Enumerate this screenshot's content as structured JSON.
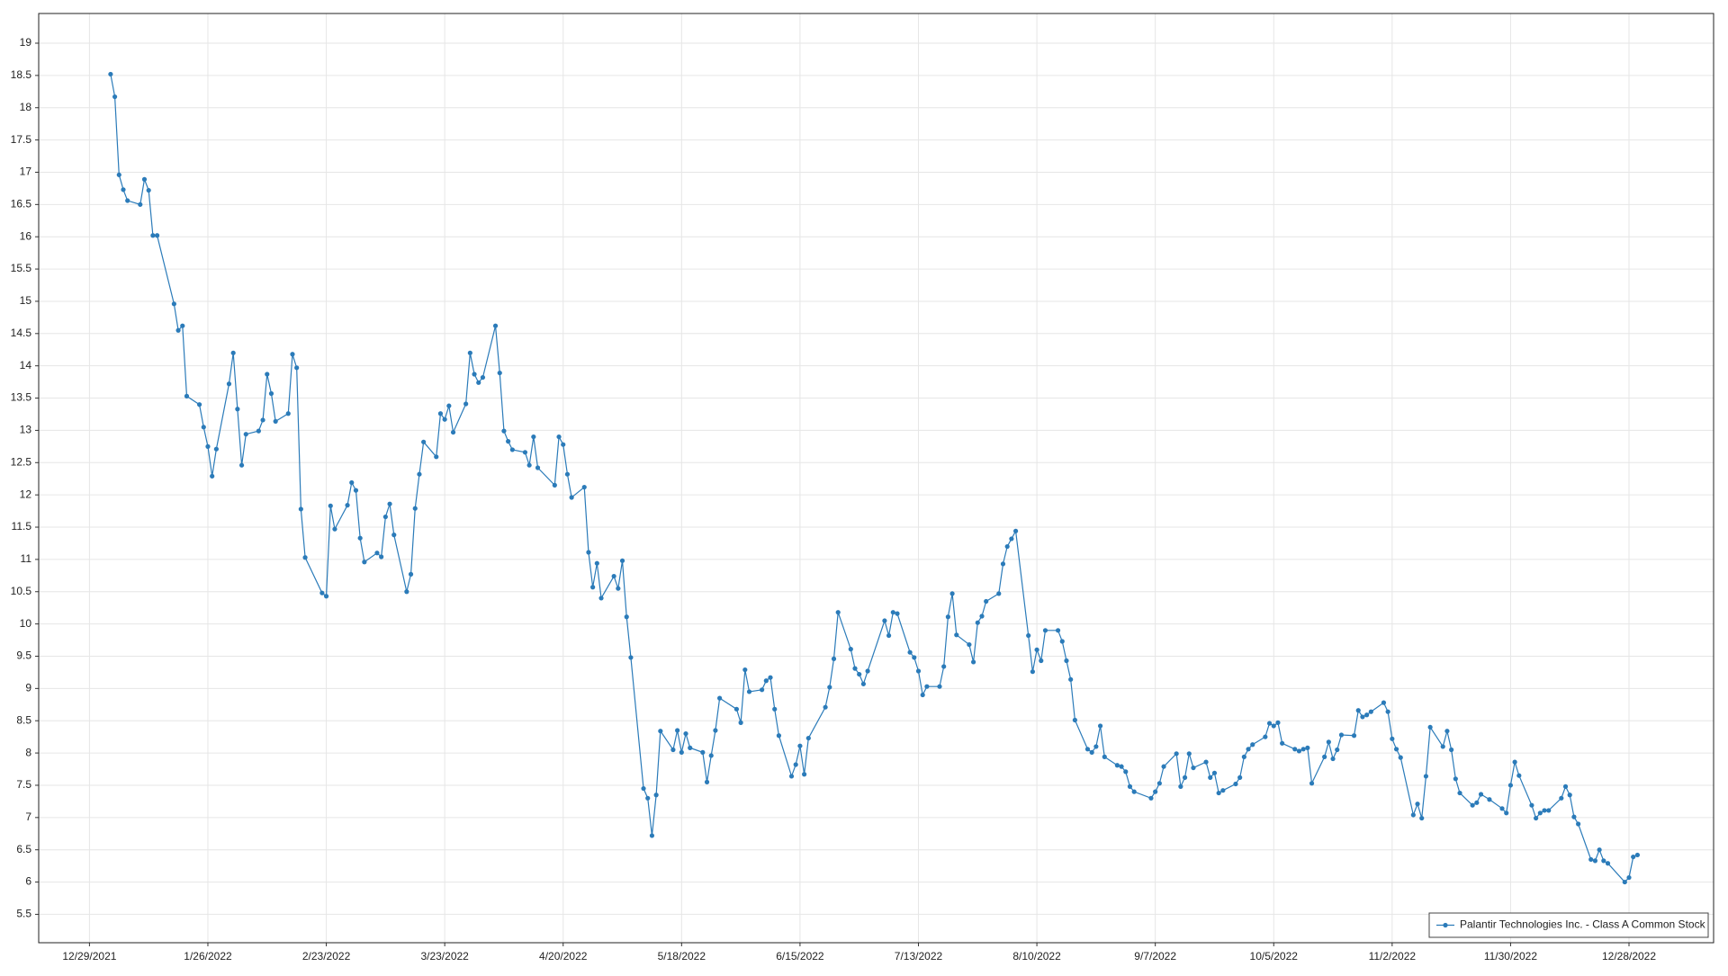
{
  "chart_data": {
    "type": "line",
    "x": [
      "1/3/2022",
      "1/4/2022",
      "1/5/2022",
      "1/6/2022",
      "1/7/2022",
      "1/10/2022",
      "1/11/2022",
      "1/12/2022",
      "1/13/2022",
      "1/14/2022",
      "1/18/2022",
      "1/19/2022",
      "1/20/2022",
      "1/21/2022",
      "1/24/2022",
      "1/25/2022",
      "1/26/2022",
      "1/27/2022",
      "1/28/2022",
      "1/31/2022",
      "2/1/2022",
      "2/2/2022",
      "2/3/2022",
      "2/4/2022",
      "2/7/2022",
      "2/8/2022",
      "2/9/2022",
      "2/10/2022",
      "2/11/2022",
      "2/14/2022",
      "2/15/2022",
      "2/16/2022",
      "2/17/2022",
      "2/18/2022",
      "2/22/2022",
      "2/23/2022",
      "2/24/2022",
      "2/25/2022",
      "2/28/2022",
      "3/1/2022",
      "3/2/2022",
      "3/3/2022",
      "3/4/2022",
      "3/7/2022",
      "3/8/2022",
      "3/9/2022",
      "3/10/2022",
      "3/11/2022",
      "3/14/2022",
      "3/15/2022",
      "3/16/2022",
      "3/17/2022",
      "3/18/2022",
      "3/21/2022",
      "3/22/2022",
      "3/23/2022",
      "3/24/2022",
      "3/25/2022",
      "3/28/2022",
      "3/29/2022",
      "3/30/2022",
      "3/31/2022",
      "4/1/2022",
      "4/4/2022",
      "4/5/2022",
      "4/6/2022",
      "4/7/2022",
      "4/8/2022",
      "4/11/2022",
      "4/12/2022",
      "4/13/2022",
      "4/14/2022",
      "4/18/2022",
      "4/19/2022",
      "4/20/2022",
      "4/21/2022",
      "4/22/2022",
      "4/25/2022",
      "4/26/2022",
      "4/27/2022",
      "4/28/2022",
      "4/29/2022",
      "5/2/2022",
      "5/3/2022",
      "5/4/2022",
      "5/5/2022",
      "5/6/2022",
      "5/9/2022",
      "5/10/2022",
      "5/11/2022",
      "5/12/2022",
      "5/13/2022",
      "5/16/2022",
      "5/17/2022",
      "5/18/2022",
      "5/19/2022",
      "5/20/2022",
      "5/23/2022",
      "5/24/2022",
      "5/25/2022",
      "5/26/2022",
      "5/27/2022",
      "5/31/2022",
      "6/1/2022",
      "6/2/2022",
      "6/3/2022",
      "6/6/2022",
      "6/7/2022",
      "6/8/2022",
      "6/9/2022",
      "6/10/2022",
      "6/13/2022",
      "6/14/2022",
      "6/15/2022",
      "6/16/2022",
      "6/17/2022",
      "6/21/2022",
      "6/22/2022",
      "6/23/2022",
      "6/24/2022",
      "6/27/2022",
      "6/28/2022",
      "6/29/2022",
      "6/30/2022",
      "7/1/2022",
      "7/5/2022",
      "7/6/2022",
      "7/7/2022",
      "7/8/2022",
      "7/11/2022",
      "7/12/2022",
      "7/13/2022",
      "7/14/2022",
      "7/15/2022",
      "7/18/2022",
      "7/19/2022",
      "7/20/2022",
      "7/21/2022",
      "7/22/2022",
      "7/25/2022",
      "7/26/2022",
      "7/27/2022",
      "7/28/2022",
      "7/29/2022",
      "8/1/2022",
      "8/2/2022",
      "8/3/2022",
      "8/4/2022",
      "8/5/2022",
      "8/8/2022",
      "8/9/2022",
      "8/10/2022",
      "8/11/2022",
      "8/12/2022",
      "8/15/2022",
      "8/16/2022",
      "8/17/2022",
      "8/18/2022",
      "8/19/2022",
      "8/22/2022",
      "8/23/2022",
      "8/24/2022",
      "8/25/2022",
      "8/26/2022",
      "8/29/2022",
      "8/30/2022",
      "8/31/2022",
      "9/1/2022",
      "9/2/2022",
      "9/6/2022",
      "9/7/2022",
      "9/8/2022",
      "9/9/2022",
      "9/12/2022",
      "9/13/2022",
      "9/14/2022",
      "9/15/2022",
      "9/16/2022",
      "9/19/2022",
      "9/20/2022",
      "9/21/2022",
      "9/22/2022",
      "9/23/2022",
      "9/26/2022",
      "9/27/2022",
      "9/28/2022",
      "9/29/2022",
      "9/30/2022",
      "10/3/2022",
      "10/4/2022",
      "10/5/2022",
      "10/6/2022",
      "10/7/2022",
      "10/10/2022",
      "10/11/2022",
      "10/12/2022",
      "10/13/2022",
      "10/14/2022",
      "10/17/2022",
      "10/18/2022",
      "10/19/2022",
      "10/20/2022",
      "10/21/2022",
      "10/24/2022",
      "10/25/2022",
      "10/26/2022",
      "10/27/2022",
      "10/28/2022",
      "10/31/2022",
      "11/1/2022",
      "11/2/2022",
      "11/3/2022",
      "11/4/2022",
      "11/7/2022",
      "11/8/2022",
      "11/9/2022",
      "11/10/2022",
      "11/11/2022",
      "11/14/2022",
      "11/15/2022",
      "11/16/2022",
      "11/17/2022",
      "11/18/2022",
      "11/21/2022",
      "11/22/2022",
      "11/23/2022",
      "11/25/2022",
      "11/28/2022",
      "11/29/2022",
      "11/30/2022",
      "12/1/2022",
      "12/2/2022",
      "12/5/2022",
      "12/6/2022",
      "12/7/2022",
      "12/8/2022",
      "12/9/2022",
      "12/12/2022",
      "12/13/2022",
      "12/14/2022",
      "12/15/2022",
      "12/16/2022",
      "12/19/2022",
      "12/20/2022",
      "12/21/2022",
      "12/22/2022",
      "12/23/2022",
      "12/27/2022",
      "12/28/2022",
      "12/29/2022",
      "12/30/2022"
    ],
    "series": [
      {
        "name": "Palantir Technologies Inc. - Class A Common Stock",
        "color": "#2b7bb9",
        "values": [
          18.52,
          18.17,
          16.96,
          16.73,
          16.56,
          16.5,
          16.89,
          16.72,
          16.02,
          16.02,
          14.96,
          14.55,
          14.62,
          13.53,
          13.4,
          13.05,
          12.75,
          12.29,
          12.71,
          13.72,
          14.2,
          13.33,
          12.46,
          12.94,
          12.99,
          13.16,
          13.87,
          13.57,
          13.14,
          13.26,
          14.18,
          13.97,
          11.78,
          11.03,
          10.48,
          10.43,
          11.83,
          11.47,
          11.84,
          12.19,
          12.07,
          11.33,
          10.96,
          11.1,
          11.04,
          11.66,
          11.86,
          11.38,
          10.5,
          10.77,
          11.79,
          12.32,
          12.82,
          12.59,
          13.26,
          13.17,
          13.38,
          12.97,
          13.41,
          14.2,
          13.87,
          13.74,
          13.82,
          14.62,
          13.89,
          12.99,
          12.83,
          12.7,
          12.66,
          12.46,
          12.9,
          12.42,
          12.15,
          12.9,
          12.78,
          12.32,
          11.96,
          12.12,
          11.11,
          10.57,
          10.94,
          10.4,
          10.74,
          10.55,
          10.98,
          10.11,
          9.48,
          7.45,
          7.3,
          6.72,
          7.35,
          8.34,
          8.05,
          8.35,
          8.01,
          8.3,
          8.08,
          8.01,
          7.55,
          7.96,
          8.35,
          8.85,
          8.68,
          8.47,
          9.29,
          8.95,
          8.98,
          9.12,
          9.17,
          8.68,
          8.27,
          7.64,
          7.82,
          8.11,
          7.67,
          8.23,
          8.71,
          9.02,
          9.46,
          10.18,
          9.61,
          9.31,
          9.22,
          9.07,
          9.27,
          10.05,
          9.82,
          10.18,
          10.16,
          9.56,
          9.48,
          9.27,
          8.9,
          9.03,
          9.03,
          9.34,
          10.11,
          10.47,
          9.83,
          9.68,
          9.41,
          10.02,
          10.12,
          10.35,
          10.47,
          10.93,
          11.2,
          11.32,
          11.44,
          9.82,
          9.26,
          9.6,
          9.43,
          9.9,
          9.9,
          9.73,
          9.43,
          9.14,
          8.51,
          8.06,
          8.01,
          8.1,
          8.42,
          7.94,
          7.81,
          7.79,
          7.71,
          7.48,
          7.4,
          7.3,
          7.4,
          7.53,
          7.79,
          7.99,
          7.48,
          7.62,
          7.99,
          7.77,
          7.86,
          7.62,
          7.69,
          7.38,
          7.42,
          7.52,
          7.62,
          7.94,
          8.06,
          8.13,
          8.25,
          8.46,
          8.42,
          8.47,
          8.15,
          8.06,
          8.03,
          8.06,
          8.08,
          7.53,
          7.94,
          8.17,
          7.91,
          8.05,
          8.28,
          8.27,
          8.66,
          8.56,
          8.59,
          8.64,
          8.78,
          8.64,
          8.22,
          8.06,
          7.93,
          7.04,
          7.21,
          6.99,
          7.64,
          8.4,
          8.1,
          8.34,
          8.05,
          7.6,
          7.38,
          7.19,
          7.23,
          7.36,
          7.28,
          7.14,
          7.07,
          7.5,
          7.86,
          7.65,
          7.19,
          6.99,
          7.07,
          7.11,
          7.11,
          7.3,
          7.48,
          7.35,
          7.01,
          6.9,
          6.35,
          6.33,
          6.5,
          6.33,
          6.29,
          6.0,
          6.07,
          6.39,
          6.42
        ]
      }
    ],
    "xlim": [
      "12/17/2021",
      "1/17/2023"
    ],
    "xticks": [
      "12/29/2021",
      "1/26/2022",
      "2/23/2022",
      "3/23/2022",
      "4/20/2022",
      "5/18/2022",
      "6/15/2022",
      "7/13/2022",
      "8/10/2022",
      "9/7/2022",
      "10/5/2022",
      "11/2/2022",
      "11/30/2022",
      "12/28/2022"
    ],
    "ylim": [
      5.06,
      19.46
    ],
    "yticks": [
      5.5,
      6,
      6.5,
      7,
      7.5,
      8,
      8.5,
      9,
      9.5,
      10,
      10.5,
      11,
      11.5,
      12,
      12.5,
      13,
      13.5,
      14,
      14.5,
      15,
      15.5,
      16,
      16.5,
      17,
      17.5,
      18,
      18.5,
      19
    ],
    "grid": true,
    "legend": "lower right"
  }
}
